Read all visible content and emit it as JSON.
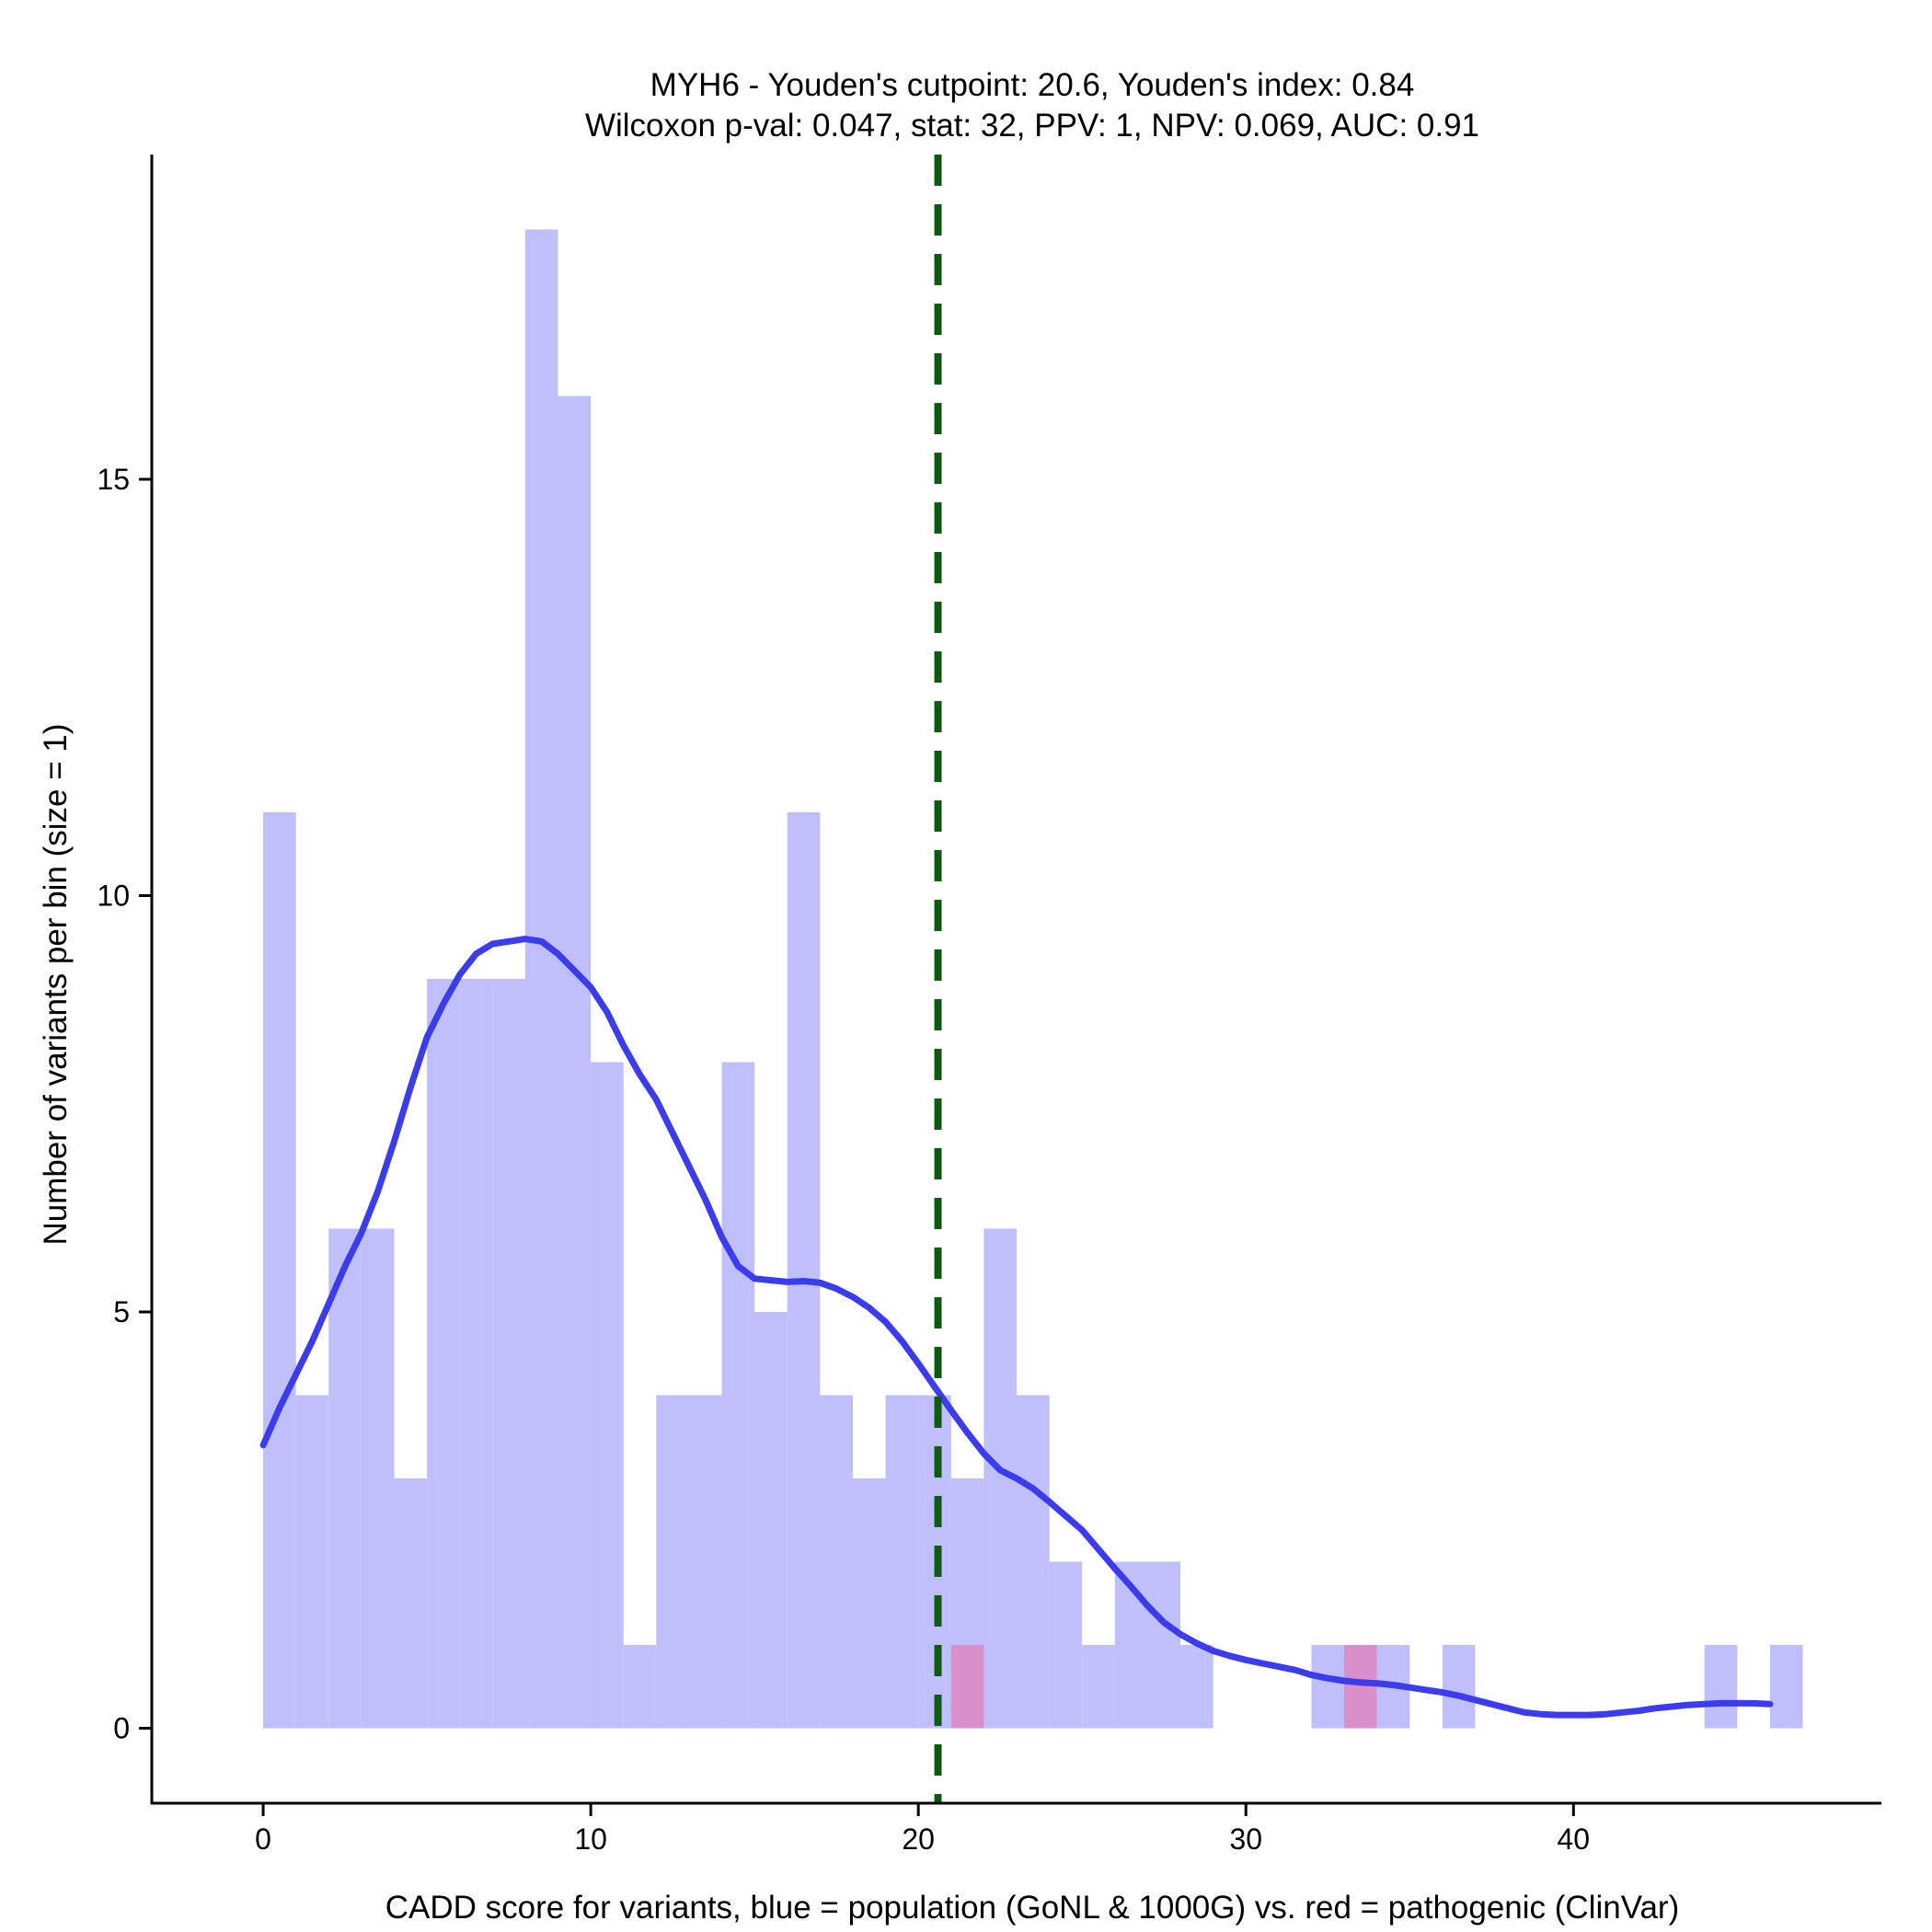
{
  "chart_data": {
    "type": "histogram",
    "title_lines": [
      "MYH6 - Youden's cutpoint: 20.6, Youden's index: 0.84",
      "Wilcoxon p-val: 0.047, stat: 32, PPV: 1, NPV: 0.069, AUC: 0.91"
    ],
    "xlabel": "CADD score for variants, blue = population (GoNL & 1000G) vs. red = pathogenic (ClinVar)",
    "ylabel": "Number of variants per bin (size = 1)",
    "xlim": [
      -3.4,
      49.4
    ],
    "ylim": [
      -0.9,
      18.9
    ],
    "x_ticks": [
      0,
      10,
      20,
      30,
      40
    ],
    "y_ticks": [
      0,
      5,
      10,
      15
    ],
    "grid": false,
    "bin_size": 1,
    "series": [
      {
        "name": "population (GoNL & 1000G)",
        "color": "#bfbffb",
        "bins": [
          {
            "x0": 0,
            "count": 11
          },
          {
            "x0": 1,
            "count": 4
          },
          {
            "x0": 2,
            "count": 6
          },
          {
            "x0": 3,
            "count": 6
          },
          {
            "x0": 4,
            "count": 3
          },
          {
            "x0": 5,
            "count": 9
          },
          {
            "x0": 6,
            "count": 9
          },
          {
            "x0": 7,
            "count": 9
          },
          {
            "x0": 8,
            "count": 18
          },
          {
            "x0": 9,
            "count": 16
          },
          {
            "x0": 10,
            "count": 8
          },
          {
            "x0": 11,
            "count": 1
          },
          {
            "x0": 12,
            "count": 4
          },
          {
            "x0": 13,
            "count": 4
          },
          {
            "x0": 14,
            "count": 8
          },
          {
            "x0": 15,
            "count": 5
          },
          {
            "x0": 16,
            "count": 11
          },
          {
            "x0": 17,
            "count": 4
          },
          {
            "x0": 18,
            "count": 3
          },
          {
            "x0": 19,
            "count": 4
          },
          {
            "x0": 20,
            "count": 4
          },
          {
            "x0": 21,
            "count": 3
          },
          {
            "x0": 22,
            "count": 6
          },
          {
            "x0": 23,
            "count": 4
          },
          {
            "x0": 24,
            "count": 2
          },
          {
            "x0": 25,
            "count": 1
          },
          {
            "x0": 26,
            "count": 2
          },
          {
            "x0": 27,
            "count": 2
          },
          {
            "x0": 28,
            "count": 1
          },
          {
            "x0": 32,
            "count": 1
          },
          {
            "x0": 33,
            "count": 1
          },
          {
            "x0": 34,
            "count": 1
          },
          {
            "x0": 36,
            "count": 1
          },
          {
            "x0": 44,
            "count": 1
          },
          {
            "x0": 46,
            "count": 1
          }
        ]
      },
      {
        "name": "pathogenic (ClinVar)",
        "color": "#d98fc9",
        "bins": [
          {
            "x0": 21,
            "count": 1
          },
          {
            "x0": 33,
            "count": 1
          }
        ]
      }
    ],
    "density_curve": {
      "color": "#3b3bef",
      "points": [
        [
          0,
          3.4
        ],
        [
          0.5,
          3.85
        ],
        [
          1,
          4.25
        ],
        [
          1.5,
          4.65
        ],
        [
          2,
          5.1
        ],
        [
          2.5,
          5.55
        ],
        [
          3,
          5.95
        ],
        [
          3.5,
          6.45
        ],
        [
          4,
          7.05
        ],
        [
          4.5,
          7.7
        ],
        [
          5,
          8.3
        ],
        [
          5.5,
          8.7
        ],
        [
          6,
          9.05
        ],
        [
          6.5,
          9.3
        ],
        [
          7,
          9.42
        ],
        [
          7.5,
          9.45
        ],
        [
          8,
          9.48
        ],
        [
          8.5,
          9.45
        ],
        [
          9,
          9.3
        ],
        [
          9.5,
          9.1
        ],
        [
          10,
          8.9
        ],
        [
          10.5,
          8.6
        ],
        [
          11,
          8.2
        ],
        [
          11.5,
          7.85
        ],
        [
          12,
          7.55
        ],
        [
          12.5,
          7.15
        ],
        [
          13,
          6.75
        ],
        [
          13.5,
          6.35
        ],
        [
          14,
          5.9
        ],
        [
          14.5,
          5.55
        ],
        [
          15,
          5.4
        ],
        [
          15.5,
          5.38
        ],
        [
          16,
          5.36
        ],
        [
          16.5,
          5.37
        ],
        [
          17,
          5.35
        ],
        [
          17.5,
          5.28
        ],
        [
          18,
          5.18
        ],
        [
          18.5,
          5.05
        ],
        [
          19,
          4.88
        ],
        [
          19.5,
          4.65
        ],
        [
          20,
          4.38
        ],
        [
          20.5,
          4.1
        ],
        [
          21,
          3.82
        ],
        [
          21.5,
          3.55
        ],
        [
          22,
          3.3
        ],
        [
          22.5,
          3.1
        ],
        [
          23,
          3.0
        ],
        [
          23.5,
          2.88
        ],
        [
          24,
          2.72
        ],
        [
          24.5,
          2.55
        ],
        [
          25,
          2.38
        ],
        [
          25.5,
          2.15
        ],
        [
          26,
          1.92
        ],
        [
          26.5,
          1.7
        ],
        [
          27,
          1.47
        ],
        [
          27.5,
          1.27
        ],
        [
          28,
          1.13
        ],
        [
          28.5,
          1.02
        ],
        [
          29,
          0.93
        ],
        [
          29.5,
          0.87
        ],
        [
          30,
          0.82
        ],
        [
          30.5,
          0.78
        ],
        [
          31,
          0.74
        ],
        [
          31.5,
          0.7
        ],
        [
          32,
          0.64
        ],
        [
          32.5,
          0.6
        ],
        [
          33,
          0.57
        ],
        [
          33.5,
          0.55
        ],
        [
          34,
          0.54
        ],
        [
          34.5,
          0.52
        ],
        [
          35,
          0.49
        ],
        [
          35.5,
          0.46
        ],
        [
          36,
          0.43
        ],
        [
          36.5,
          0.39
        ],
        [
          37,
          0.34
        ],
        [
          37.5,
          0.29
        ],
        [
          38,
          0.24
        ],
        [
          38.5,
          0.19
        ],
        [
          39,
          0.17
        ],
        [
          39.5,
          0.16
        ],
        [
          40,
          0.16
        ],
        [
          40.5,
          0.16
        ],
        [
          41,
          0.17
        ],
        [
          41.5,
          0.19
        ],
        [
          42,
          0.21
        ],
        [
          42.5,
          0.24
        ],
        [
          43,
          0.26
        ],
        [
          43.5,
          0.28
        ],
        [
          44,
          0.29
        ],
        [
          44.5,
          0.3
        ],
        [
          45,
          0.3
        ],
        [
          45.5,
          0.3
        ],
        [
          46,
          0.29
        ]
      ]
    },
    "cutpoint": {
      "x": 20.6,
      "color": "#0d5c0d"
    }
  }
}
